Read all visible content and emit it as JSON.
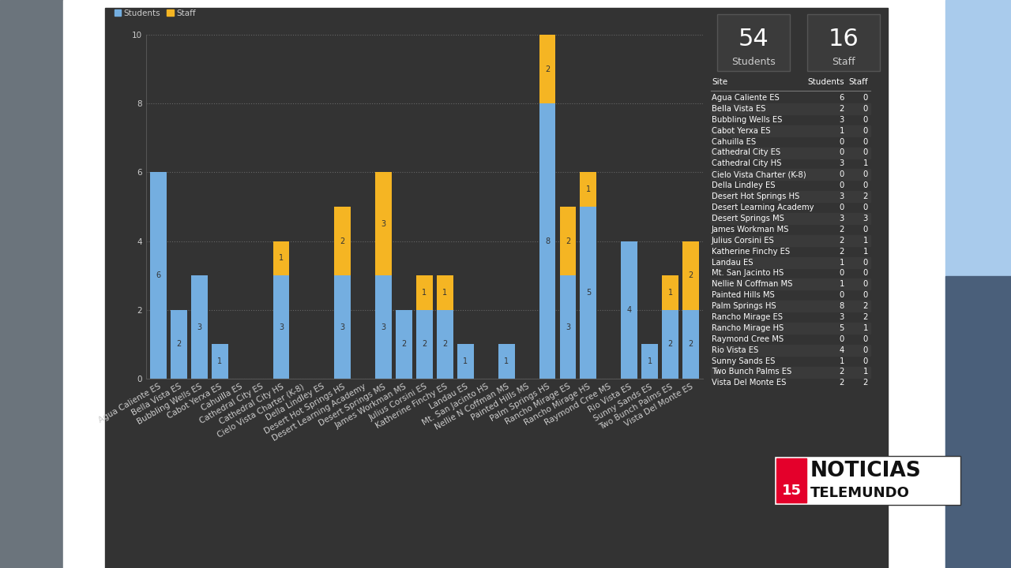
{
  "chart_data": {
    "type": "bar",
    "stacked": true,
    "data_labels": true,
    "grid": true,
    "legend": "upper left",
    "categories": [
      "Agua Caliente ES",
      "Bella Vista ES",
      "Bubbling Wells ES",
      "Cabot Yerxa ES",
      "Cahuilla ES",
      "Cathedral City ES",
      "Cathedral City HS",
      "Cielo Vista Charter (K-8)",
      "Della Lindley ES",
      "Desert Hot Springs HS",
      "Desert Learning Academy",
      "Desert Springs MS",
      "James Workman MS",
      "Julius Corsini ES",
      "Katherine Finchy ES",
      "Landau ES",
      "Mt. San Jacinto HS",
      "Nellie N Coffman MS",
      "Painted Hills MS",
      "Palm Springs HS",
      "Rancho Mirage ES",
      "Rancho Mirage HS",
      "Raymond Cree MS",
      "Rio Vista ES",
      "Sunny Sands ES",
      "Two Bunch Palms ES",
      "Vista Del Monte ES"
    ],
    "series": [
      {
        "name": "Students",
        "color": "#74aee0",
        "values": [
          6,
          2,
          3,
          1,
          0,
          0,
          3,
          0,
          0,
          3,
          0,
          3,
          2,
          2,
          2,
          1,
          0,
          1,
          0,
          8,
          3,
          5,
          0,
          4,
          1,
          2,
          2
        ]
      },
      {
        "name": "Staff",
        "color": "#f5b523",
        "values": [
          0,
          0,
          0,
          0,
          0,
          0,
          1,
          0,
          0,
          2,
          0,
          3,
          0,
          1,
          1,
          0,
          0,
          0,
          0,
          2,
          2,
          1,
          0,
          0,
          0,
          1,
          2
        ]
      }
    ],
    "ylim": [
      0,
      10
    ],
    "yticks": [
      0,
      2,
      4,
      6,
      8,
      10
    ]
  },
  "cards": [
    {
      "value": 54,
      "label": "Students"
    },
    {
      "value": 16,
      "label": "Staff"
    }
  ],
  "table_header": [
    "Site",
    "Students",
    "Staff"
  ],
  "logo": [
    "NOTICIAS",
    "15",
    "TELEMUNDO"
  ]
}
